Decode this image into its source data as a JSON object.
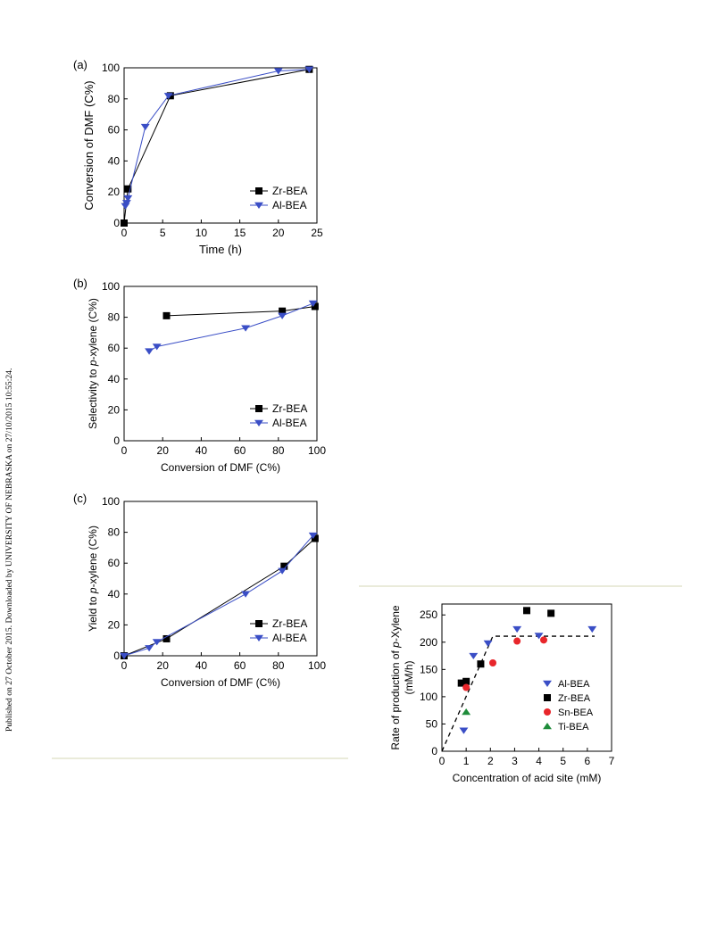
{
  "side_note": "Published on 27 October 2015. Downloaded by UNIVERSITY OF NEBRASKA on 27/10/2015 10:55:24.",
  "colors": {
    "zr": "#000000",
    "al": "#3a4ec6",
    "sn": "#e8262b",
    "ti": "#1e8c3a",
    "rule": "#d6d7b6"
  },
  "chart_data": [
    {
      "id": "a",
      "type": "line",
      "panel_label": "(a)",
      "xlabel": "Time (h)",
      "ylabel": "Conversion of DMF (C%)",
      "xlim": [
        0,
        25
      ],
      "ylim": [
        0,
        100
      ],
      "xticks": [
        0,
        5,
        10,
        15,
        20,
        25
      ],
      "yticks": [
        0,
        20,
        40,
        60,
        80,
        100
      ],
      "legend_position": "bottom-right",
      "series": [
        {
          "name": "Zr-BEA",
          "marker": "square",
          "color": "#000000",
          "x": [
            0,
            0.5,
            6,
            24
          ],
          "y": [
            0,
            22,
            82,
            99
          ]
        },
        {
          "name": "Al-BEA",
          "marker": "triangle-down",
          "color": "#3a4ec6",
          "x": [
            0.17,
            0.33,
            0.5,
            2.75,
            5.75,
            20,
            24
          ],
          "y": [
            11,
            13,
            16,
            62,
            82,
            98,
            99
          ]
        }
      ]
    },
    {
      "id": "b",
      "type": "line",
      "panel_label": "(b)",
      "xlabel": "Conversion of DMF (C%)",
      "ylabel_prefix": "Selectivity to ",
      "ylabel_italic": "p",
      "ylabel_suffix": "-xylene (C%)",
      "xlim": [
        0,
        100
      ],
      "ylim": [
        0,
        100
      ],
      "xticks": [
        0,
        20,
        40,
        60,
        80,
        100
      ],
      "yticks": [
        0,
        20,
        40,
        60,
        80,
        100
      ],
      "legend_position": "bottom-right",
      "series": [
        {
          "name": "Zr-BEA",
          "marker": "square",
          "color": "#000000",
          "x": [
            22,
            82,
            99
          ],
          "y": [
            81,
            84,
            87
          ]
        },
        {
          "name": "Al-BEA",
          "marker": "triangle-down",
          "color": "#3a4ec6",
          "x": [
            13,
            17,
            63,
            82,
            98
          ],
          "y": [
            58,
            61,
            73,
            81,
            89
          ]
        }
      ]
    },
    {
      "id": "c",
      "type": "line",
      "panel_label": "(c)",
      "xlabel": "Conversion of DMF (C%)",
      "ylabel_prefix": "Yield to ",
      "ylabel_italic": "p",
      "ylabel_suffix": "-xylene (C%)",
      "xlim": [
        0,
        100
      ],
      "ylim": [
        0,
        100
      ],
      "xticks": [
        0,
        20,
        40,
        60,
        80,
        100
      ],
      "yticks": [
        0,
        20,
        40,
        60,
        80,
        100
      ],
      "legend_position": "bottom-right",
      "series": [
        {
          "name": "Zr-BEA",
          "marker": "square",
          "color": "#000000",
          "x": [
            0,
            22,
            83,
            99
          ],
          "y": [
            0,
            11,
            58,
            76
          ]
        },
        {
          "name": "Al-BEA",
          "marker": "triangle-down",
          "color": "#3a4ec6",
          "x": [
            0,
            13,
            17,
            63,
            82,
            98
          ],
          "y": [
            0,
            5,
            9,
            40,
            55,
            78
          ]
        }
      ]
    },
    {
      "id": "d",
      "type": "scatter",
      "panel_label": "",
      "xlabel": "Concentration of acid site (mM)",
      "ylabel_line1_prefix": "Rate of production of ",
      "ylabel_line1_italic": "p",
      "ylabel_line1_suffix": "-Xylene",
      "ylabel_line2": "(mM/h)",
      "xlim": [
        0,
        7
      ],
      "ylim": [
        0,
        270
      ],
      "xticks": [
        0,
        1,
        2,
        3,
        4,
        5,
        6,
        7
      ],
      "yticks": [
        0,
        50,
        100,
        150,
        200,
        250
      ],
      "legend_position": "bottom-right",
      "series": [
        {
          "name": "Al-BEA",
          "marker": "triangle-down",
          "color": "#3a4ec6",
          "x": [
            0.9,
            1.3,
            1.9,
            3.1,
            4.0,
            6.2
          ],
          "y": [
            38,
            175,
            198,
            224,
            212,
            224
          ]
        },
        {
          "name": "Zr-BEA",
          "marker": "square",
          "color": "#000000",
          "x": [
            0.8,
            1.0,
            1.6,
            3.5,
            4.5
          ],
          "y": [
            125,
            128,
            160,
            258,
            253
          ]
        },
        {
          "name": "Sn-BEA",
          "marker": "circle",
          "color": "#e8262b",
          "x": [
            1.0,
            2.1,
            3.1,
            4.2
          ],
          "y": [
            117,
            162,
            202,
            204
          ]
        },
        {
          "name": "Ti-BEA",
          "marker": "triangle-up",
          "color": "#1e8c3a",
          "x": [
            1.0
          ],
          "y": [
            72
          ]
        }
      ],
      "fit_line": {
        "style": "dashed",
        "x": [
          0,
          2.1,
          6.3
        ],
        "y": [
          0,
          211,
          211
        ]
      }
    }
  ]
}
